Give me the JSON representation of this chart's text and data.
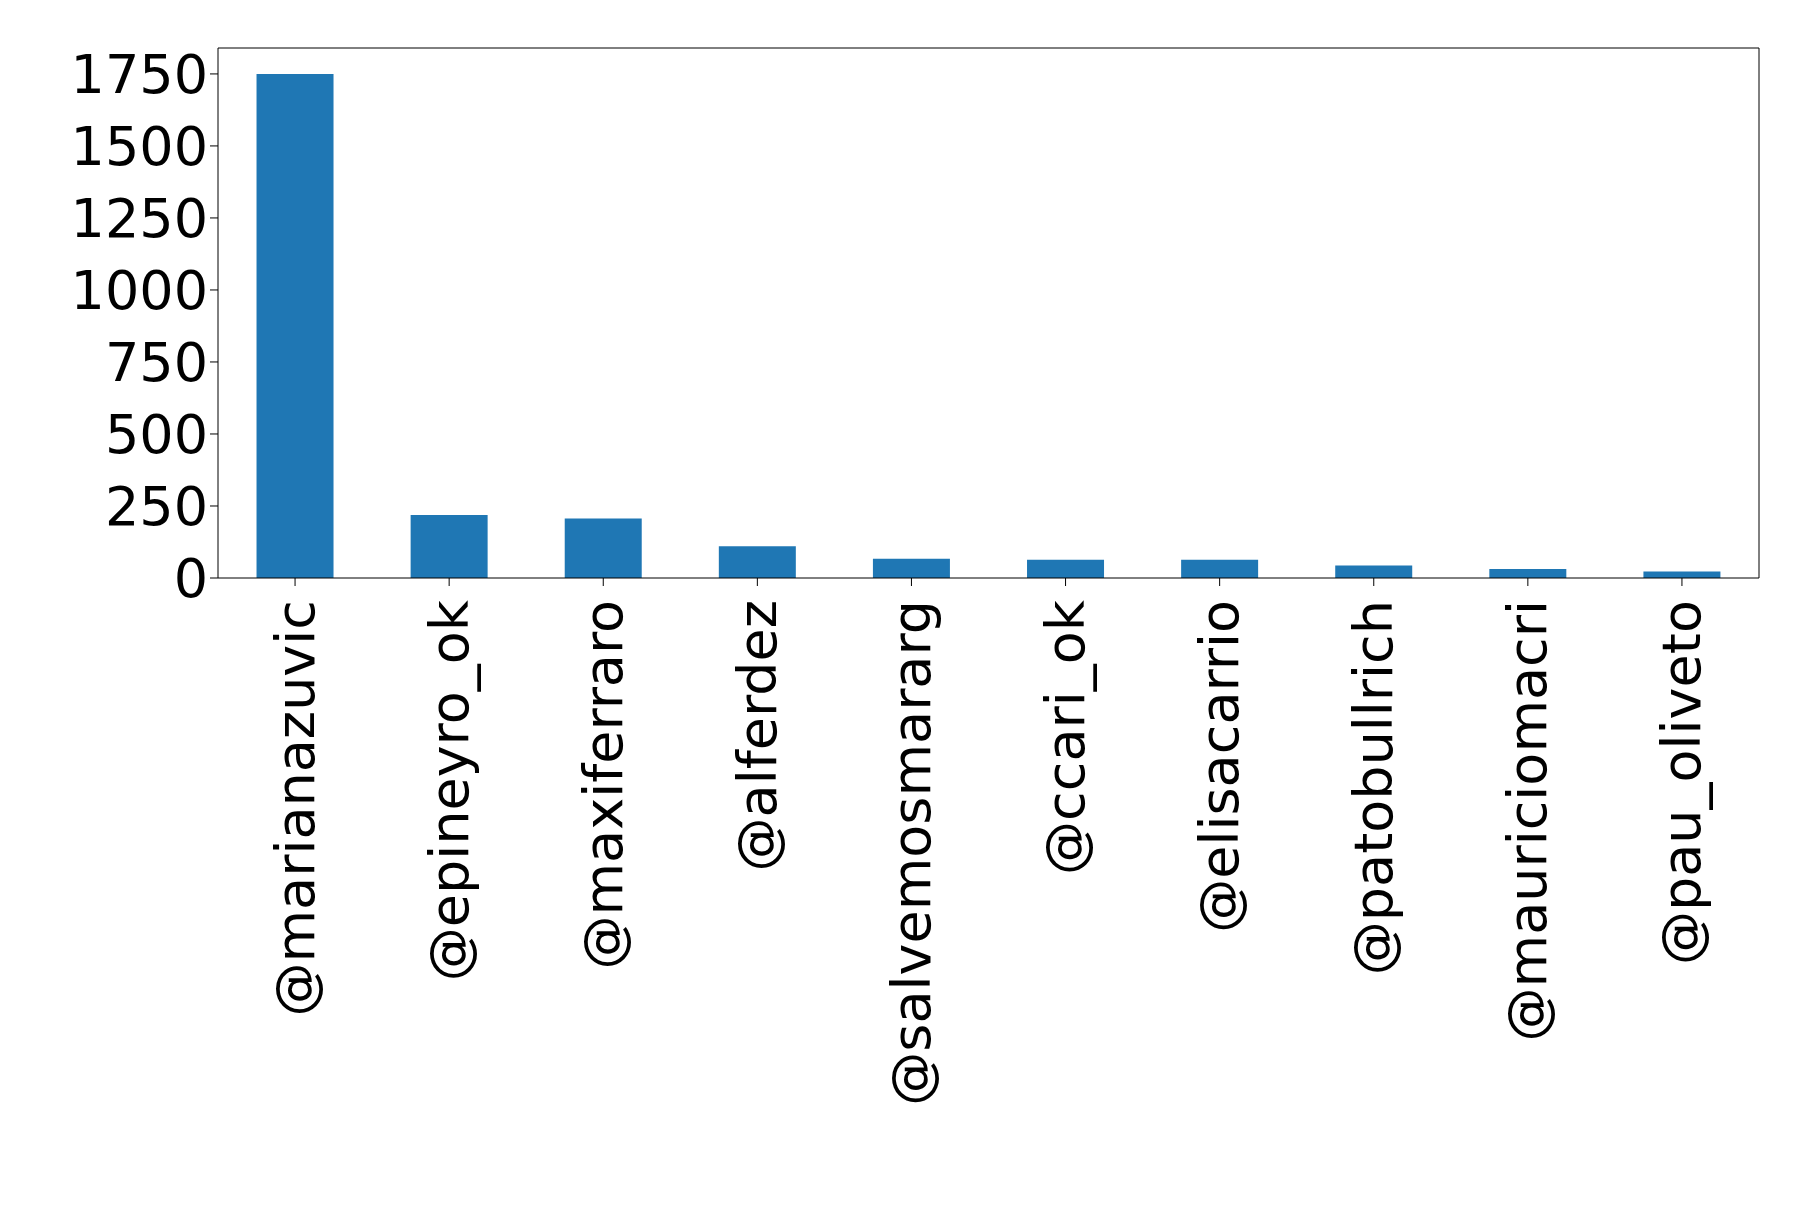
{
  "chart_data": {
    "type": "bar",
    "categories": [
      "@marianazuvic",
      "@epineyro_ok",
      "@maxiferraro",
      "@alferdez",
      "@salvemosmararg",
      "@ccari_ok",
      "@elisacarrio",
      "@patobullrich",
      "@mauriciomacri",
      "@pau_oliveto"
    ],
    "values": [
      1750,
      219,
      207,
      110,
      67,
      63,
      63,
      43,
      31,
      23
    ],
    "color": "#1f77b4",
    "ylim": [
      0,
      1840
    ],
    "yticks": [
      0,
      250,
      500,
      750,
      1000,
      1250,
      1500,
      1750
    ]
  }
}
